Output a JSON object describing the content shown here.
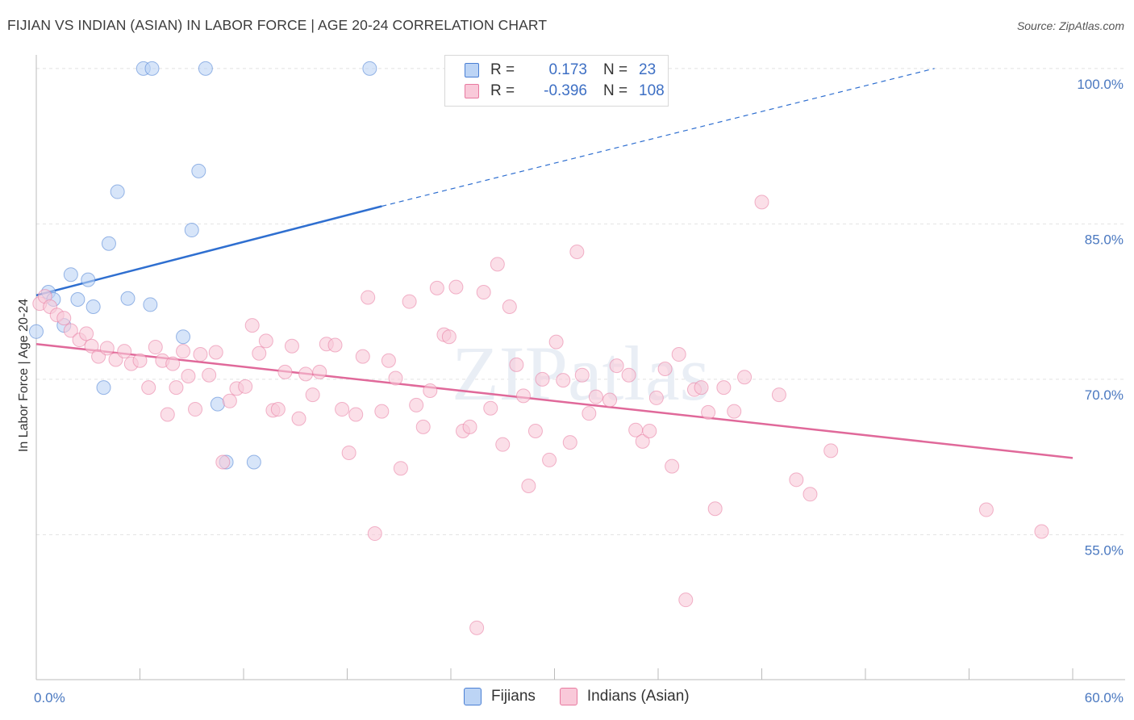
{
  "title": "FIJIAN VS INDIAN (ASIAN) IN LABOR FORCE | AGE 20-24 CORRELATION CHART",
  "source": "Source: ZipAtlas.com",
  "watermark": "ZIPatlas",
  "legend": {
    "rows": [
      {
        "r_label": "R =",
        "r_value": "0.173",
        "n_label": "N =",
        "n_value": "23",
        "color": "#4a7fd4",
        "fill": "#bcd4f5"
      },
      {
        "r_label": "R =",
        "r_value": "-0.396",
        "n_label": "N =",
        "n_value": "108",
        "color": "#e87aa0",
        "fill": "#f9c9d9"
      }
    ]
  },
  "bottom_legend": [
    {
      "label": "Fijians",
      "color": "#4a7fd4",
      "fill": "#bcd4f5"
    },
    {
      "label": "Indians (Asian)",
      "color": "#e87aa0",
      "fill": "#f9c9d9"
    }
  ],
  "chart_data": {
    "type": "scatter",
    "title": "FIJIAN VS INDIAN (ASIAN) IN LABOR FORCE | AGE 20-24 CORRELATION CHART",
    "xlabel": "",
    "ylabel": "In Labor Force | Age 20-24",
    "xlim": [
      0,
      60
    ],
    "ylim": [
      41.0,
      101.0
    ],
    "x_tick_labels": [
      "0.0%",
      "60.0%"
    ],
    "y_ticks": [
      55.0,
      70.0,
      85.0,
      100.0
    ],
    "y_tick_labels": [
      "55.0%",
      "70.0%",
      "85.0%",
      "100.0%"
    ],
    "grid": true,
    "series": [
      {
        "name": "Fijians",
        "color": "#4a7fd4",
        "fill": "#bcd4f5",
        "points": [
          [
            0.0,
            74.6
          ],
          [
            0.7,
            78.4
          ],
          [
            1.0,
            77.7
          ],
          [
            1.6,
            75.2
          ],
          [
            2.0,
            80.1
          ],
          [
            2.4,
            77.7
          ],
          [
            3.0,
            79.6
          ],
          [
            3.3,
            77.0
          ],
          [
            3.9,
            69.2
          ],
          [
            4.2,
            83.1
          ],
          [
            4.7,
            88.1
          ],
          [
            5.3,
            77.8
          ],
          [
            6.2,
            100.0
          ],
          [
            6.7,
            100.0
          ],
          [
            6.6,
            77.2
          ],
          [
            8.5,
            74.1
          ],
          [
            9.0,
            84.4
          ],
          [
            9.4,
            90.1
          ],
          [
            9.8,
            100.0
          ],
          [
            10.5,
            67.6
          ],
          [
            11.0,
            62.0
          ],
          [
            12.6,
            62.0
          ],
          [
            19.3,
            100.0
          ]
        ],
        "trend": {
          "x": [
            0.0,
            20.0
          ],
          "y": [
            78.1,
            86.7
          ],
          "dashed_to": [
            52.0,
            100.0
          ]
        }
      },
      {
        "name": "Indians (Asian)",
        "color": "#e87aa0",
        "fill": "#f9c9d9",
        "points": [
          [
            0.2,
            77.3
          ],
          [
            0.5,
            78.0
          ],
          [
            0.8,
            77.0
          ],
          [
            1.2,
            76.2
          ],
          [
            1.6,
            75.9
          ],
          [
            2.0,
            74.7
          ],
          [
            2.5,
            73.8
          ],
          [
            2.9,
            74.4
          ],
          [
            3.2,
            73.2
          ],
          [
            3.6,
            72.2
          ],
          [
            4.1,
            73.0
          ],
          [
            4.6,
            71.9
          ],
          [
            5.1,
            72.7
          ],
          [
            5.5,
            71.5
          ],
          [
            6.0,
            71.8
          ],
          [
            6.5,
            69.2
          ],
          [
            6.9,
            73.1
          ],
          [
            7.3,
            71.8
          ],
          [
            7.6,
            66.6
          ],
          [
            7.9,
            71.5
          ],
          [
            8.1,
            69.2
          ],
          [
            8.5,
            72.7
          ],
          [
            8.8,
            70.3
          ],
          [
            9.2,
            67.1
          ],
          [
            9.5,
            72.4
          ],
          [
            10.0,
            70.4
          ],
          [
            10.4,
            72.6
          ],
          [
            10.8,
            62.0
          ],
          [
            11.2,
            67.9
          ],
          [
            11.6,
            69.1
          ],
          [
            12.1,
            69.3
          ],
          [
            12.5,
            75.2
          ],
          [
            12.9,
            72.5
          ],
          [
            13.3,
            73.7
          ],
          [
            13.7,
            67.0
          ],
          [
            14.0,
            67.1
          ],
          [
            14.4,
            70.7
          ],
          [
            14.8,
            73.2
          ],
          [
            15.2,
            66.2
          ],
          [
            15.6,
            70.5
          ],
          [
            16.0,
            68.5
          ],
          [
            16.4,
            70.7
          ],
          [
            16.8,
            73.4
          ],
          [
            17.3,
            73.3
          ],
          [
            17.7,
            67.1
          ],
          [
            18.1,
            62.9
          ],
          [
            18.5,
            66.6
          ],
          [
            18.9,
            72.2
          ],
          [
            19.2,
            77.9
          ],
          [
            19.6,
            55.1
          ],
          [
            20.0,
            66.9
          ],
          [
            20.4,
            71.8
          ],
          [
            20.8,
            70.1
          ],
          [
            21.1,
            61.4
          ],
          [
            21.6,
            77.5
          ],
          [
            22.0,
            67.5
          ],
          [
            22.4,
            65.4
          ],
          [
            22.8,
            68.9
          ],
          [
            23.2,
            78.8
          ],
          [
            23.6,
            74.3
          ],
          [
            23.9,
            74.1
          ],
          [
            24.3,
            78.9
          ],
          [
            24.7,
            65.0
          ],
          [
            25.1,
            65.4
          ],
          [
            25.5,
            46.0
          ],
          [
            25.9,
            78.4
          ],
          [
            26.3,
            67.2
          ],
          [
            26.7,
            81.1
          ],
          [
            27.0,
            63.7
          ],
          [
            27.4,
            77.0
          ],
          [
            27.8,
            71.4
          ],
          [
            28.2,
            68.4
          ],
          [
            28.5,
            59.7
          ],
          [
            28.9,
            65.0
          ],
          [
            29.3,
            70.0
          ],
          [
            29.7,
            62.2
          ],
          [
            30.1,
            73.6
          ],
          [
            30.5,
            69.9
          ],
          [
            30.9,
            63.9
          ],
          [
            31.3,
            82.3
          ],
          [
            31.6,
            70.4
          ],
          [
            32.0,
            66.7
          ],
          [
            32.4,
            68.3
          ],
          [
            33.2,
            68.0
          ],
          [
            33.6,
            71.3
          ],
          [
            34.3,
            70.4
          ],
          [
            34.7,
            65.1
          ],
          [
            35.1,
            64.0
          ],
          [
            35.5,
            65.0
          ],
          [
            35.9,
            68.2
          ],
          [
            36.4,
            71.0
          ],
          [
            36.8,
            61.6
          ],
          [
            37.2,
            72.4
          ],
          [
            37.6,
            48.7
          ],
          [
            38.1,
            69.0
          ],
          [
            38.5,
            69.2
          ],
          [
            38.9,
            66.8
          ],
          [
            39.3,
            57.5
          ],
          [
            39.8,
            69.2
          ],
          [
            40.4,
            66.9
          ],
          [
            41.0,
            70.2
          ],
          [
            42.0,
            87.1
          ],
          [
            43.0,
            68.5
          ],
          [
            44.0,
            60.3
          ],
          [
            44.8,
            58.9
          ],
          [
            46.0,
            63.1
          ],
          [
            55.0,
            57.4
          ],
          [
            58.2,
            55.3
          ]
        ],
        "trend": {
          "x": [
            0.0,
            60.0
          ],
          "y": [
            73.4,
            62.4
          ]
        }
      }
    ]
  }
}
